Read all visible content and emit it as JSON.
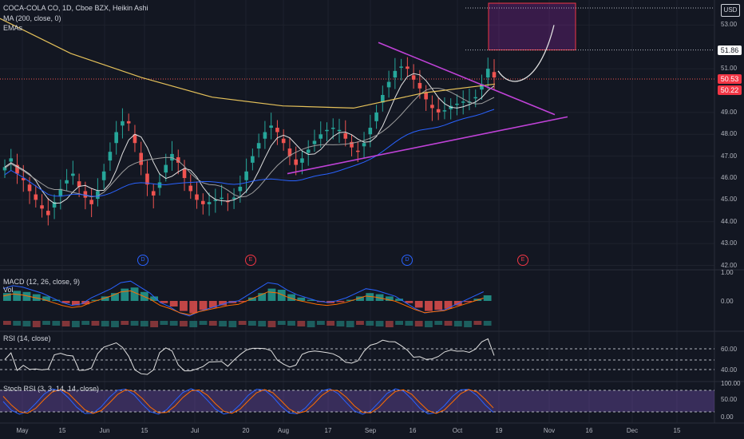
{
  "header": {
    "symbol_line": "COCA-COLA CO, 1D, Cboe BZX, Heikin Ashi",
    "ma_line": "MA (200, close, 0)",
    "ema_line": "EMAs"
  },
  "currency": "USD",
  "price_axis": {
    "ticks": [
      "53.00",
      "51.00",
      "49.00",
      "48.00",
      "47.00",
      "46.00",
      "45.00",
      "44.00",
      "43.00",
      "42.00"
    ],
    "tags": [
      {
        "text": "51.86",
        "bg": "#ffffff",
        "fg": "#131722"
      },
      {
        "text": "50.53",
        "bg": "#f23645",
        "fg": "#ffffff"
      },
      {
        "text": "50.22",
        "bg": "#f23645",
        "fg": "#ffffff"
      }
    ]
  },
  "time_axis": [
    "May",
    "15",
    "Jun",
    "15",
    "Jul",
    "20",
    "Aug",
    "17",
    "Sep",
    "16",
    "Oct",
    "19",
    "Nov",
    "16",
    "Dec",
    "15"
  ],
  "events": [
    {
      "letter": "D",
      "color": "#2962ff"
    },
    {
      "letter": "E",
      "color": "#f23645"
    },
    {
      "letter": "D",
      "color": "#2962ff"
    },
    {
      "letter": "E",
      "color": "#f23645"
    }
  ],
  "macd_panel": {
    "title": "MACD (12, 26, close, 9)",
    "vol": "Vol",
    "ticks": [
      "1.00",
      "0.00"
    ]
  },
  "rsi_panel": {
    "title": "RSI (14, close)",
    "ticks": [
      "60.00",
      "40.00"
    ]
  },
  "stoch_panel": {
    "title": "Stoch RSI (3, 3, 14, 14, close)",
    "ticks": [
      "100.00",
      "50.00",
      "0.00"
    ]
  },
  "colors": {
    "up": "#26a69a",
    "down": "#ef5350",
    "ma200": "#e5c15a",
    "triangle": "#c042d8",
    "target_box": "#f23645"
  },
  "chart_data": [
    {
      "type": "candlestick",
      "title": "COCA-COLA CO, 1D, Cboe BZX, Heikin Ashi",
      "xlabel": "",
      "ylabel": "",
      "x_range": [
        "May",
        "Dec 15"
      ],
      "ylim": [
        41.8,
        54.0
      ],
      "close_approx": [
        46.5,
        46.9,
        46.2,
        45.9,
        45.4,
        45.0,
        44.6,
        44.3,
        44.9,
        45.5,
        45.9,
        46.2,
        45.6,
        45.1,
        44.8,
        45.4,
        46.3,
        47.2,
        48.1,
        48.6,
        48.5,
        47.6,
        46.6,
        45.7,
        45.2,
        45.8,
        46.6,
        47.1,
        46.7,
        46.0,
        45.4,
        45.0,
        44.8,
        44.9,
        45.0,
        45.1,
        44.9,
        45.1,
        45.6,
        46.3,
        47.0,
        47.6,
        48.1,
        48.4,
        48.1,
        47.6,
        47.0,
        46.6,
        46.9,
        47.3,
        47.7,
        48.0,
        48.2,
        48.3,
        48.2,
        47.8,
        47.4,
        47.2,
        47.6,
        48.3,
        49.0,
        49.8,
        50.4,
        50.9,
        51.1,
        51.0,
        50.5,
        50.1,
        49.6,
        49.2,
        49.0,
        49.1,
        49.3,
        49.4,
        49.5,
        49.5,
        49.7,
        50.3,
        51.0,
        50.6
      ],
      "ma200_approx": [
        53.3,
        51.7,
        50.6,
        49.7,
        49.3,
        49.2,
        49.9,
        50.3
      ],
      "annotations": {
        "projection_box": [
          51.86,
          54.0
        ],
        "current_prices": [
          50.53,
          50.22
        ],
        "projection_target": 53.0
      }
    },
    {
      "type": "bar",
      "name": "MACD",
      "ylim": [
        -0.7,
        1.0
      ],
      "ticks": [
        1.0,
        0.0
      ]
    },
    {
      "type": "line",
      "name": "RSI (14, close)",
      "ylim": [
        30,
        80
      ],
      "levels": [
        60,
        40
      ]
    },
    {
      "type": "line",
      "name": "Stoch RSI (3, 3, 14, 14, close)",
      "ylim": [
        0,
        100
      ],
      "levels": [
        100,
        50,
        0
      ]
    }
  ]
}
